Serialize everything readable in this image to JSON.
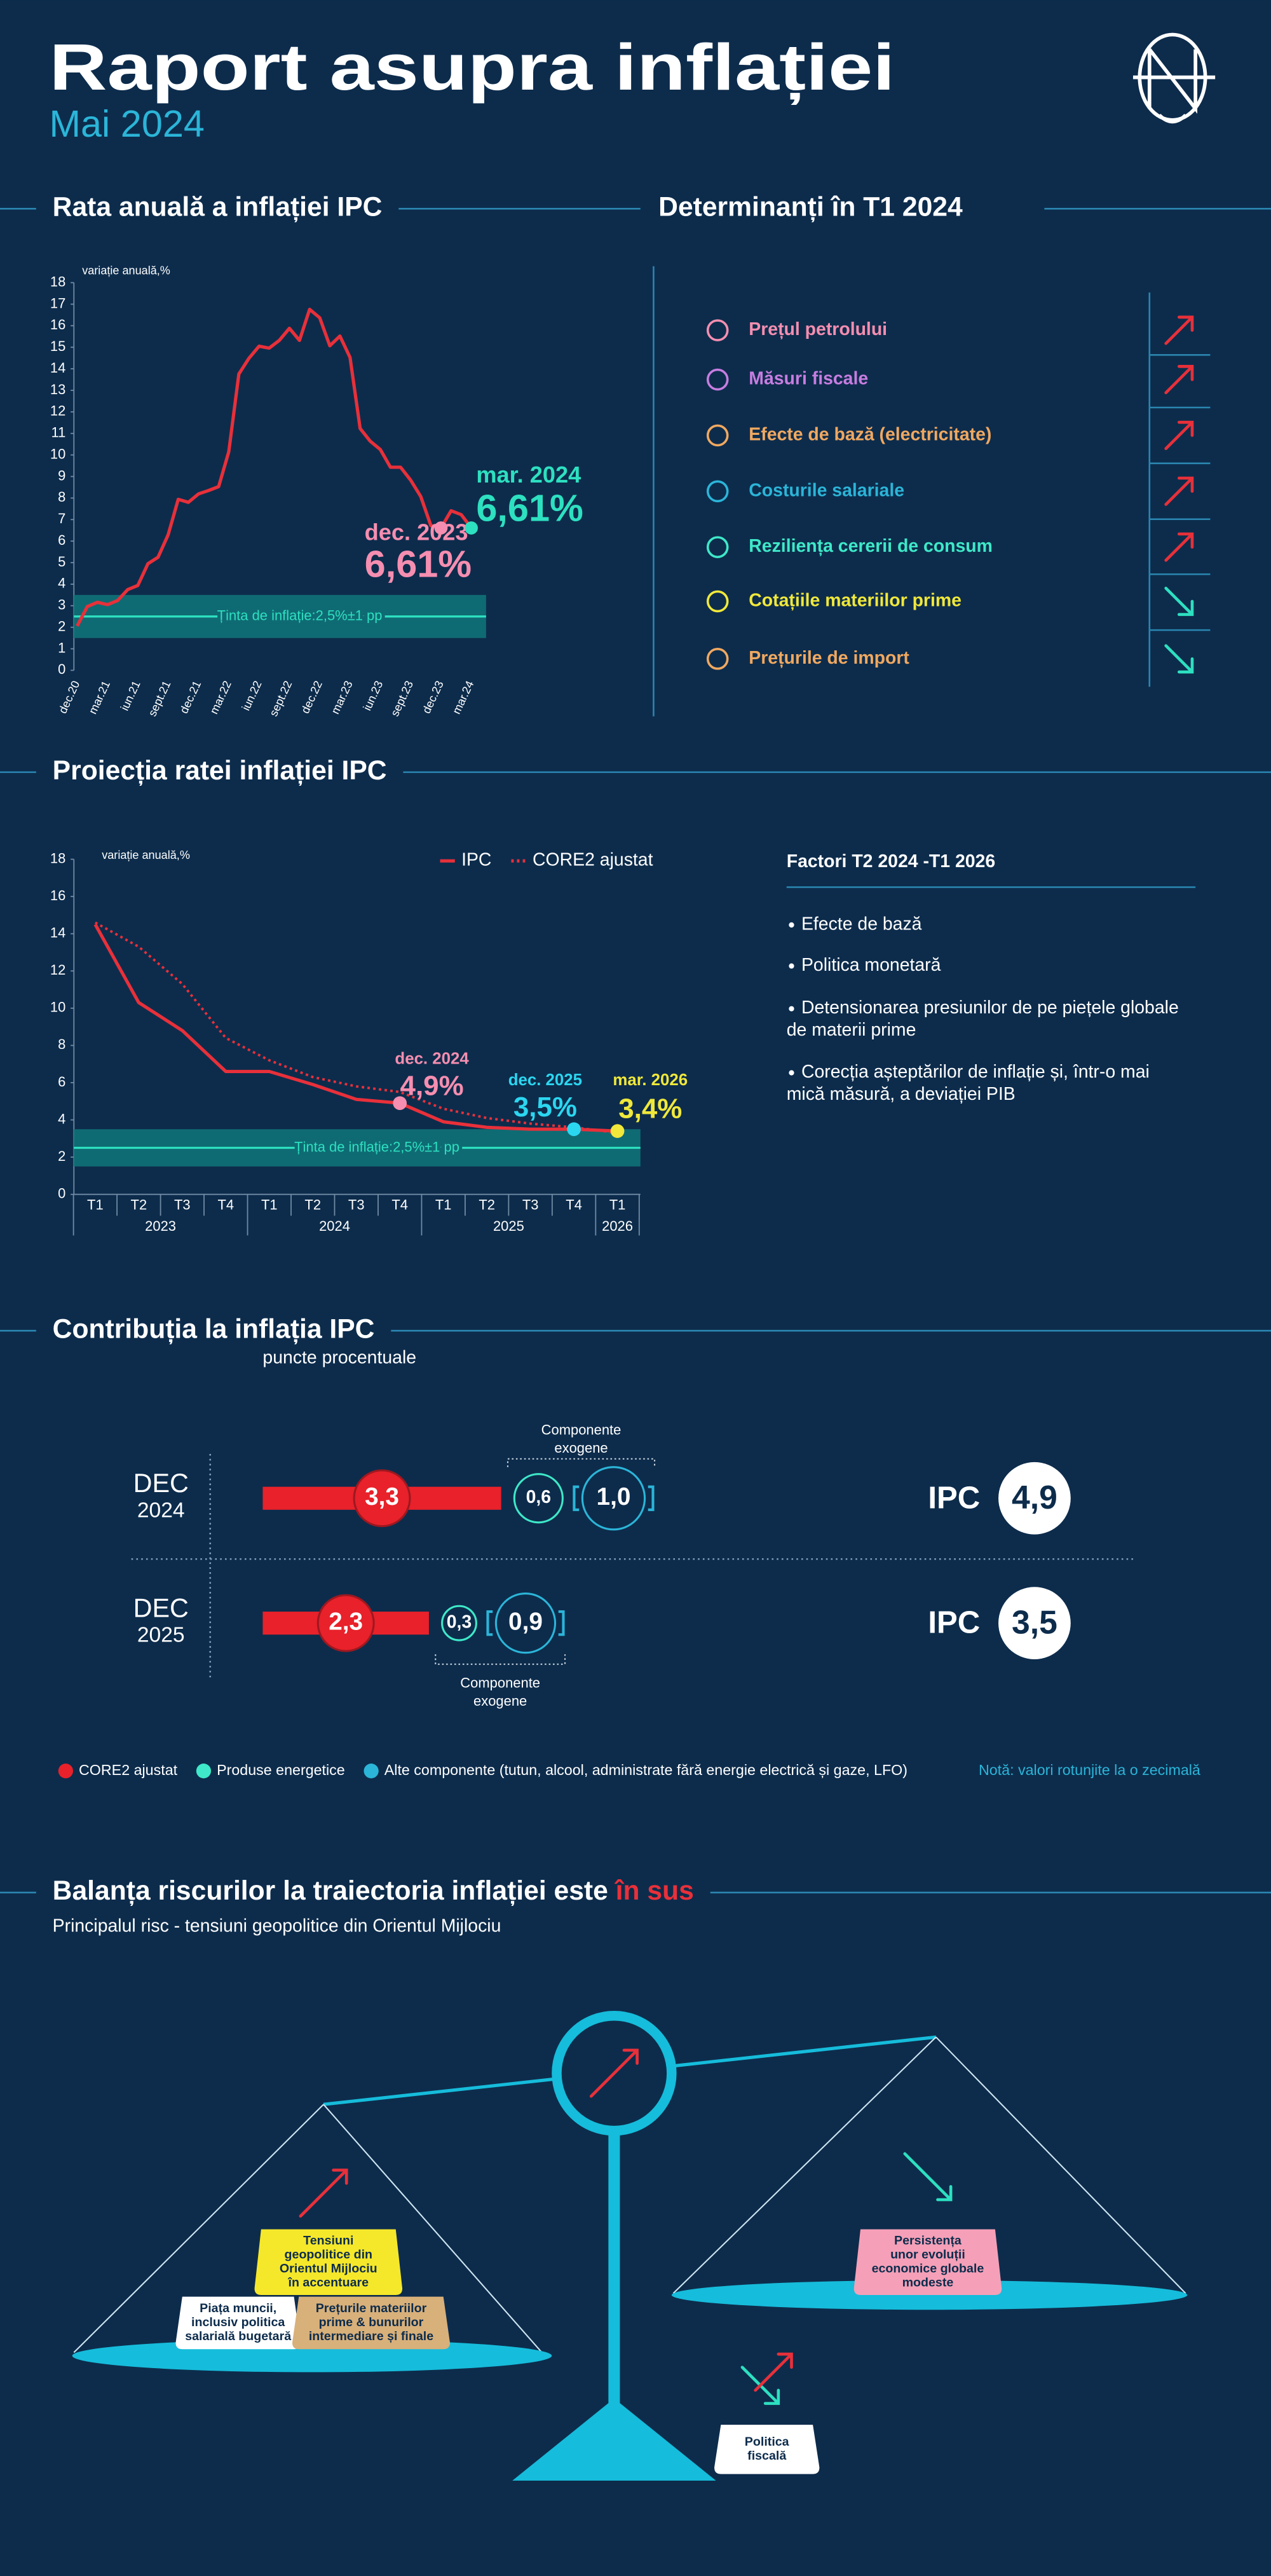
{
  "header": {
    "title": "Raport asupra inflației",
    "subtitle": "Mai 2024"
  },
  "chart_data": [
    {
      "type": "line",
      "title": "Rata anuală a inflației IPC",
      "y_label": "variație anuală,%",
      "categories": [
        "dec.20",
        null,
        null,
        "mar.21",
        null,
        null,
        "iun.21",
        null,
        null,
        "sept.21",
        null,
        null,
        "dec.21",
        null,
        null,
        "mar.22",
        null,
        null,
        "iun.22",
        null,
        null,
        "sept.22",
        null,
        null,
        "dec.22",
        null,
        null,
        "mar.23",
        null,
        null,
        "iun.23",
        null,
        null,
        "sept.23",
        null,
        null,
        "dec.23",
        null,
        null,
        "mar.24"
      ],
      "values": [
        2.06,
        2.96,
        3.16,
        3.05,
        3.24,
        3.75,
        3.94,
        4.95,
        5.25,
        6.29,
        7.94,
        7.8,
        8.19,
        8.35,
        8.53,
        10.15,
        13.76,
        14.49,
        15.05,
        14.96,
        15.32,
        15.88,
        15.32,
        16.76,
        16.37,
        15.07,
        15.52,
        14.53,
        11.23,
        10.64,
        10.25,
        9.43,
        9.43,
        8.83,
        8.07,
        6.72,
        6.61,
        7.41,
        7.23,
        6.61
      ],
      "color": "#e8303a",
      "ylim": [
        0,
        18
      ],
      "yticks": [
        0,
        1,
        2,
        3,
        4,
        5,
        6,
        7,
        8,
        9,
        10,
        11,
        12,
        13,
        14,
        15,
        16,
        17,
        18
      ],
      "target": {
        "label": "Ținta de inflație:2,5%±1 pp",
        "value": 2.5,
        "low": 1.5,
        "high": 3.5,
        "color": "#2de0c0",
        "band_color": "#0f6b73"
      },
      "annotations": [
        {
          "label": "dec. 2023",
          "value_label": "6,61%",
          "point": 36,
          "color": "#f58eb0"
        },
        {
          "label": "mar. 2024",
          "value_label": "6,61%",
          "point": 39,
          "color": "#2de0c0"
        }
      ]
    },
    {
      "type": "line",
      "title": "Proiecția ratei inflației IPC",
      "y_label": "variație anuală,%",
      "categories": [
        "T1",
        "T2",
        "T3",
        "T4",
        "T1",
        "T2",
        "T3",
        "T4",
        "T1",
        "T2",
        "T3",
        "T4",
        "T1"
      ],
      "year_labels": [
        "2023",
        "2024",
        "2025",
        "2026"
      ],
      "series": [
        {
          "name": "IPC",
          "color": "#e8303a",
          "values": [
            14.5,
            10.3,
            8.8,
            6.6,
            6.6,
            5.9,
            5.1,
            4.9,
            3.9,
            3.6,
            3.5,
            3.5,
            3.4
          ]
        },
        {
          "name": "CORE2 ajustat",
          "color": "#e8303a",
          "dashed": true,
          "values": [
            14.6,
            13.3,
            11.3,
            8.4,
            7.2,
            6.3,
            5.8,
            5.5,
            4.6,
            4.1,
            3.8,
            3.6,
            3.3
          ]
        }
      ],
      "ylim": [
        0,
        18
      ],
      "yticks": [
        0,
        2,
        4,
        6,
        8,
        10,
        12,
        14,
        16,
        18
      ],
      "target": {
        "label": "Ținta de inflație:2,5%±1 pp",
        "value": 2.5,
        "low": 1.5,
        "high": 3.5,
        "color": "#2de0c0",
        "band_color": "#0f6b73"
      },
      "annotations": [
        {
          "label": "dec. 2024",
          "value_label": "4,9%",
          "point": 7,
          "color": "#f58eb0"
        },
        {
          "label": "dec. 2025",
          "value_label": "3,5%",
          "point": 11,
          "color": "#2bd6f0"
        },
        {
          "label": "mar. 2026",
          "value_label": "3,4%",
          "point": 12,
          "color": "#f0e83a"
        }
      ]
    },
    {
      "type": "contribution",
      "title": "Contribuția la inflația IPC",
      "subtitle": "puncte procentuale",
      "categories": [
        [
          "DEC",
          "2024"
        ],
        [
          "DEC",
          "2025"
        ]
      ],
      "series": [
        {
          "name": "CORE2 ajustat",
          "color": "#e8212a",
          "values": [
            3.3,
            2.3
          ],
          "value_labels": [
            "3,3",
            "2,3"
          ]
        },
        {
          "name": "Produse energetice",
          "color": "#3ee8c8",
          "values": [
            0.6,
            0.3
          ],
          "value_labels": [
            "0,6",
            "0,3"
          ]
        },
        {
          "name": "Alte componente (tutun, alcool, administrate fără energie electrică și gaze, LFO)",
          "color": "#2bb5d8",
          "values": [
            1.0,
            0.9
          ],
          "value_labels": [
            "1,0",
            "0,9"
          ]
        }
      ],
      "total": {
        "name": "IPC",
        "values": [
          4.9,
          3.5
        ],
        "value_labels": [
          "4,9",
          "3,5"
        ]
      },
      "group_label": [
        "Componente",
        "exogene"
      ],
      "note": "Notă: valori rotunjite la o zecimală"
    }
  ],
  "determinants": {
    "title": "Determinanți în T1 2024",
    "items": [
      {
        "label": "Prețul petrolului",
        "color": "#f58eb0",
        "direction": "up"
      },
      {
        "label": "Măsuri fiscale",
        "color": "#c77de0",
        "direction": "up"
      },
      {
        "label": "Efecte de bază (electricitate)",
        "color": "#f0a860",
        "direction": "up"
      },
      {
        "label": "Costurile salariale",
        "color": "#2bb5d8",
        "direction": "up"
      },
      {
        "label": "Reziliența cererii de consum",
        "color": "#3ee8c8",
        "direction": "up"
      },
      {
        "label": "Cotațiile materiilor prime",
        "color": "#f0e83a",
        "direction": "down"
      },
      {
        "label": "Prețurile de import",
        "color": "#f0a860",
        "direction": "down"
      }
    ]
  },
  "factors": {
    "title": "Factori T2 2024 -T1 2026",
    "items": [
      [
        "Efecte de bază"
      ],
      [
        "Politica monetară"
      ],
      [
        "Detensionarea presiunilor de pe piețele globale",
        "de materii prime"
      ],
      [
        "Corecția așteptărilor de inflație și, într-o mai",
        "mică măsură, a deviației PIB"
      ]
    ]
  },
  "risks": {
    "title": "Balanța riscurilor la traiectoria inflației este ",
    "title_highlight": "în sus",
    "subtitle": "Principalul risc - tensiuni geopolitice din Orientul Mijlociu",
    "upside": [
      {
        "lines": [
          "Tensiuni",
          "geopolitice din",
          "Orientul Mijlociu",
          "în accentuare"
        ],
        "color": "#f5e82a"
      },
      {
        "lines": [
          "Piața muncii,",
          "inclusiv politica",
          "salarială bugetară"
        ],
        "color": "#ffffff"
      },
      {
        "lines": [
          "Prețurile materiilor",
          "prime & bunurilor",
          "intermediare și finale"
        ],
        "color": "#d8b07a"
      }
    ],
    "downside": [
      {
        "lines": [
          "Persistența",
          "unor evoluții",
          "economice globale",
          "modeste"
        ],
        "color": "#f5a0b8"
      }
    ],
    "neutral": [
      {
        "lines": [
          "Politica",
          "fiscală"
        ],
        "color": "#ffffff"
      }
    ]
  }
}
